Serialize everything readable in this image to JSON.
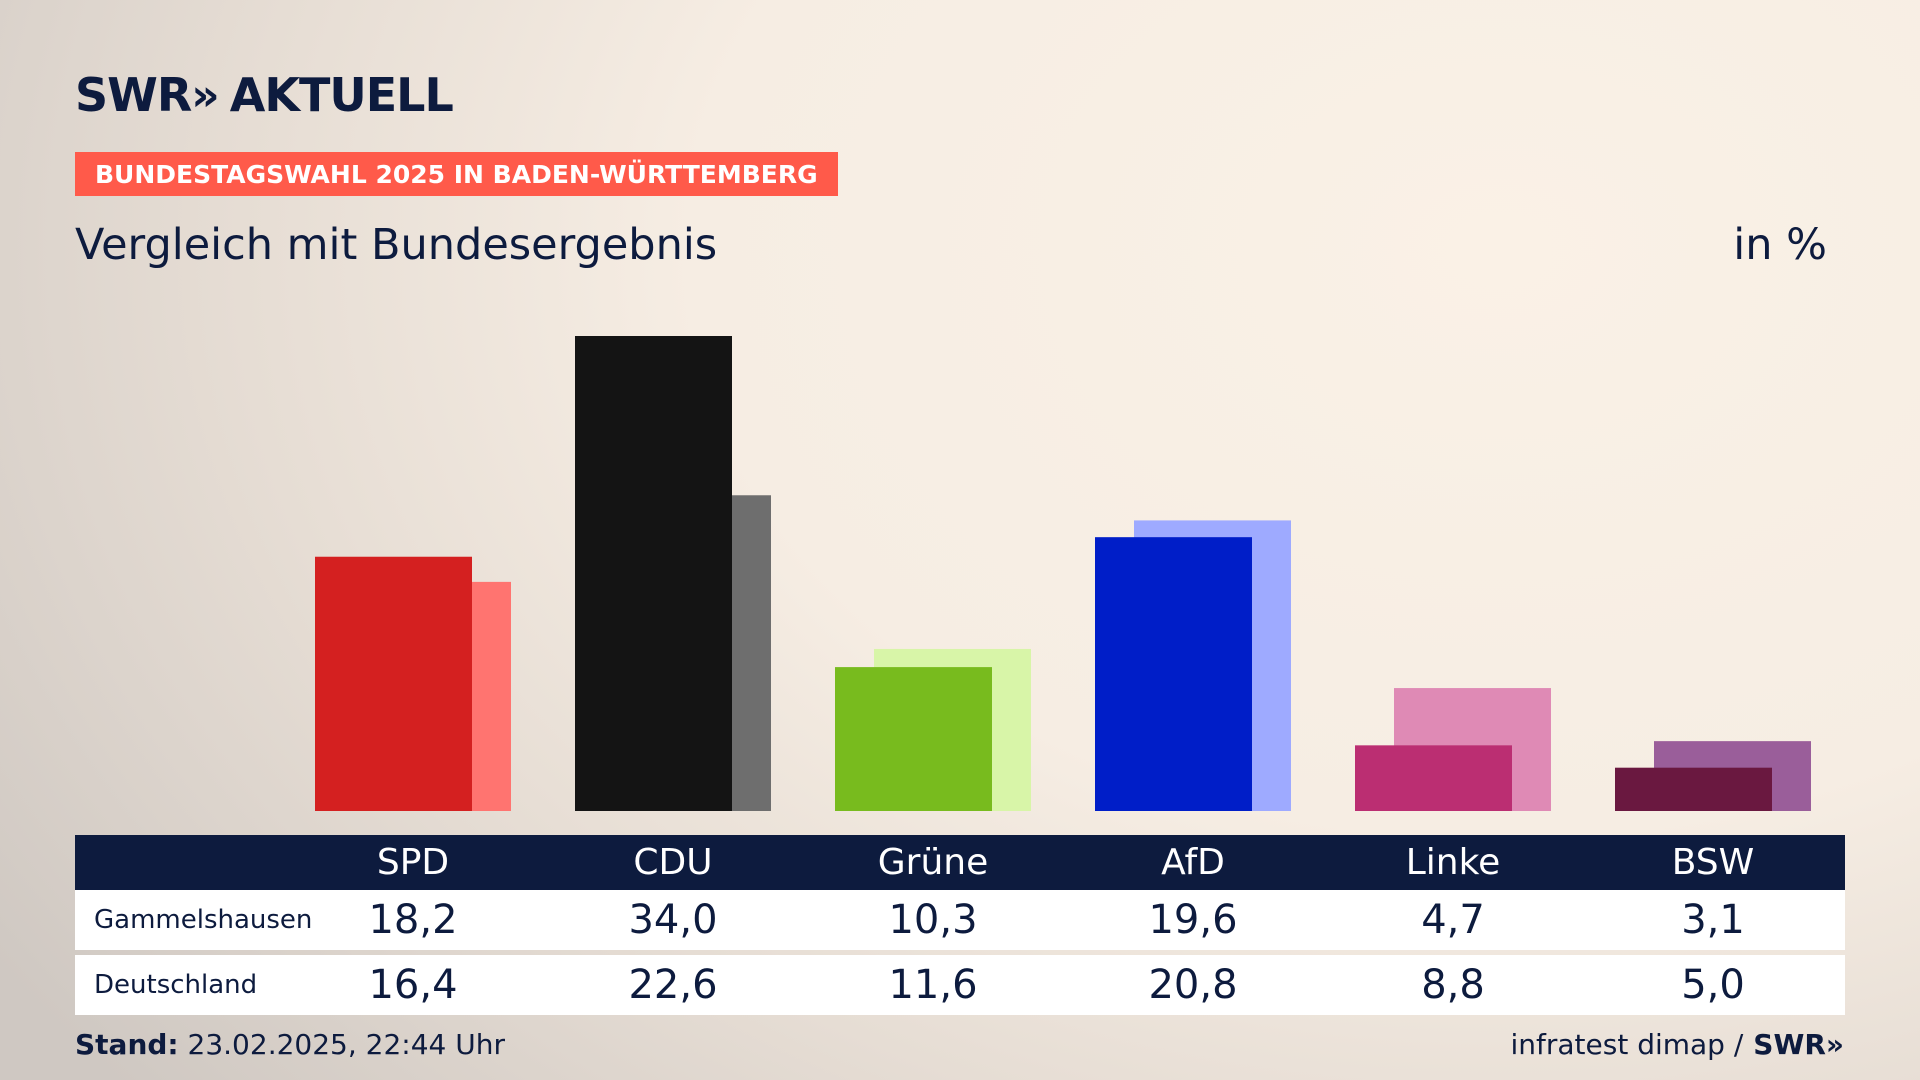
{
  "header": {
    "logo_text": "SWR",
    "logo_chevrons": "»",
    "logo_suffix": "AKTUELL",
    "badge": "BUNDESTAGSWAHL 2025 IN BADEN-WÜRTTEMBERG",
    "title": "Vergleich mit Bundesergebnis",
    "unit": "in %"
  },
  "table": {
    "rows": [
      {
        "label": "Gammelshausen",
        "values": [
          "18,2",
          "34,0",
          "10,3",
          "19,6",
          "4,7",
          "3,1"
        ]
      },
      {
        "label": "Deutschland",
        "values": [
          "16,4",
          "22,6",
          "11,6",
          "20,8",
          "8,8",
          "5,0"
        ]
      }
    ]
  },
  "footer": {
    "stand_label": "Stand:",
    "stand_value": "23.02.2025, 22:44 Uhr",
    "source": "infratest dimap /",
    "brand": "SWR»"
  },
  "chart_data": {
    "type": "bar",
    "title": "Vergleich mit Bundesergebnis",
    "ylabel": "in %",
    "ylim": [
      0,
      34.0
    ],
    "categories": [
      "SPD",
      "CDU",
      "Grüne",
      "AfD",
      "Linke",
      "BSW"
    ],
    "series": [
      {
        "name": "Gammelshausen",
        "values": [
          18.2,
          34.0,
          10.3,
          19.6,
          4.7,
          3.1
        ]
      },
      {
        "name": "Deutschland",
        "values": [
          16.4,
          22.6,
          11.6,
          20.8,
          8.8,
          5.0
        ]
      }
    ],
    "colors": {
      "primary": [
        "#d42020",
        "#141414",
        "#78bb1e",
        "#001ec8",
        "#bb2e72",
        "#6a1840"
      ],
      "secondary": [
        "#ff7470",
        "#6e6e6e",
        "#d8f5a8",
        "#9eaaff",
        "#df8ab5",
        "#9a5e9a"
      ]
    },
    "legend": "table-below",
    "grid": false
  }
}
